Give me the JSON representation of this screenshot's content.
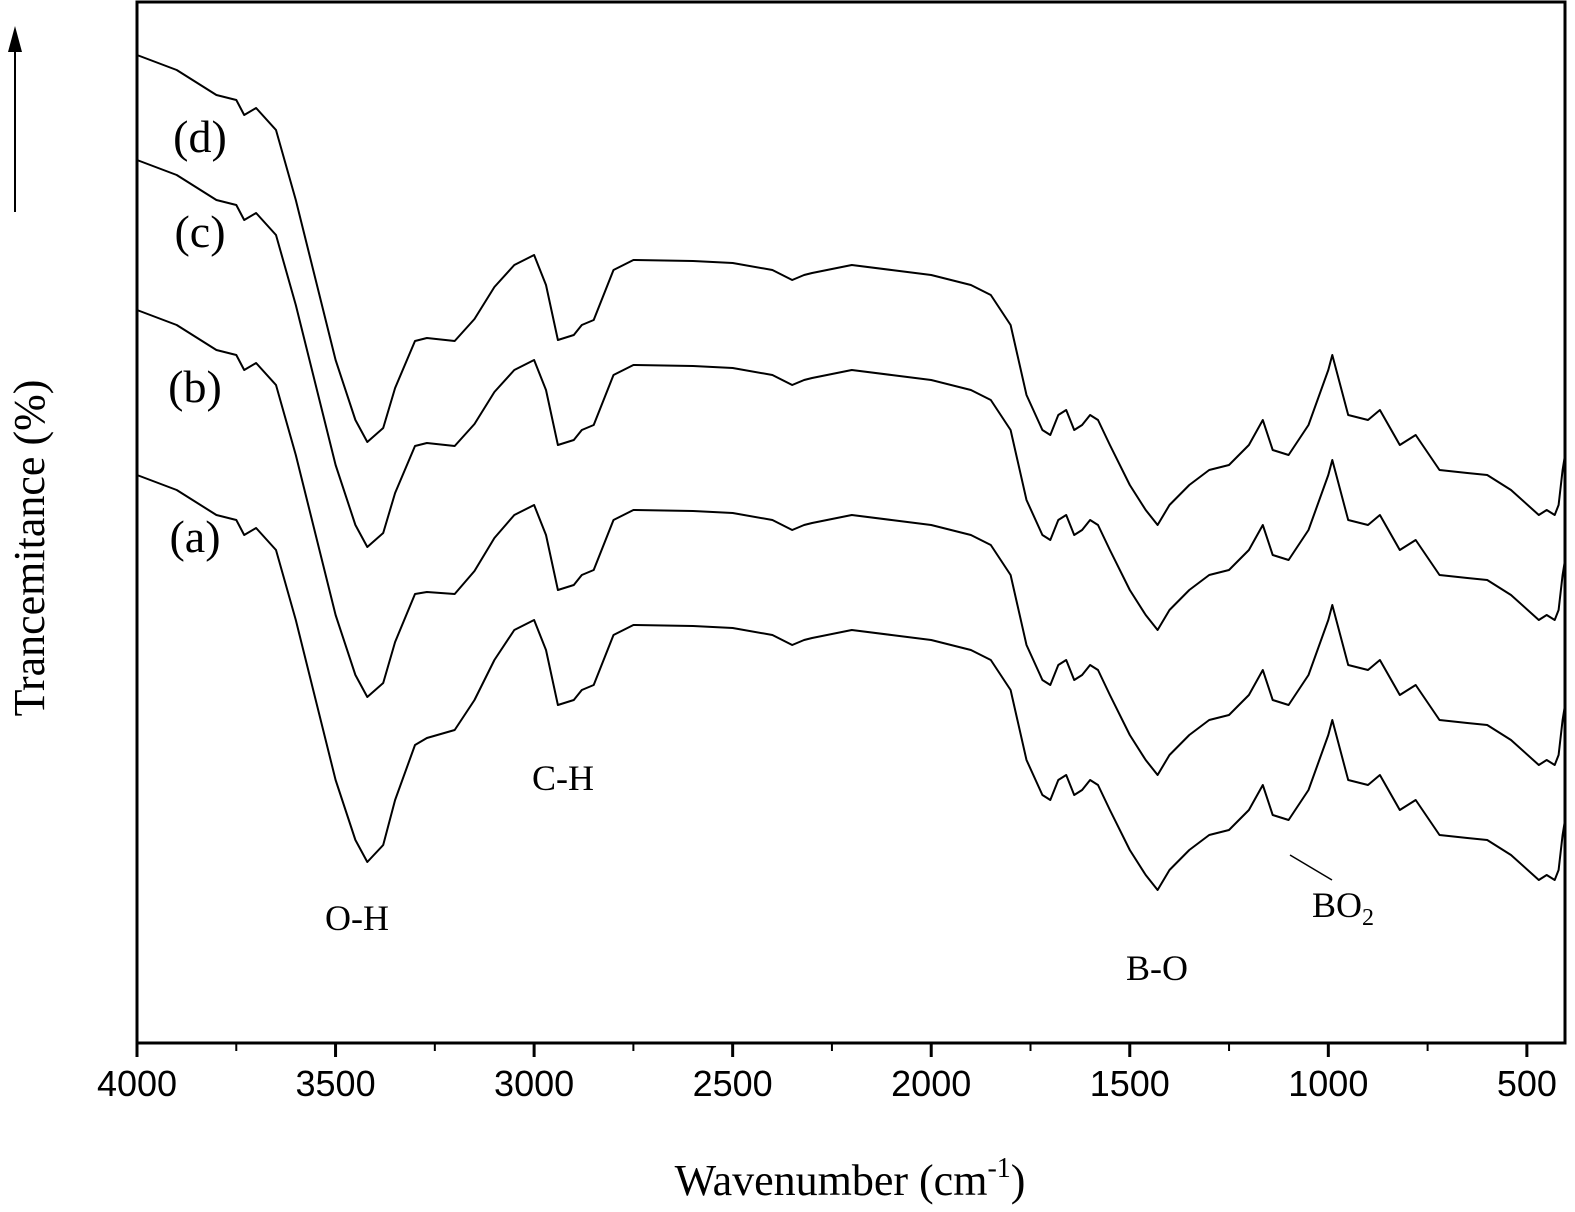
{
  "chart_data": {
    "type": "line",
    "xlabel": "Wavenumber (cm",
    "xlabel_sup": "-1",
    "xlabel_end": ")",
    "ylabel": "Trancemitance (%)",
    "xlim": [
      4000,
      404
    ],
    "ylim": [
      0,
      1043
    ],
    "xticks": [
      4000,
      3500,
      3000,
      2500,
      2000,
      1500,
      1000,
      500
    ],
    "xminorticks": [
      3750,
      3250,
      2750,
      2250,
      1750,
      1250,
      750
    ],
    "x": [
      4000,
      3900,
      3800,
      3750,
      3730,
      3700,
      3650,
      3600,
      3550,
      3500,
      3450,
      3420,
      3380,
      3350,
      3300,
      3270,
      3200,
      3150,
      3100,
      3050,
      3000,
      2970,
      2940,
      2900,
      2880,
      2850,
      2800,
      2750,
      2600,
      2500,
      2400,
      2350,
      2320,
      2300,
      2200,
      2100,
      2000,
      1900,
      1850,
      1800,
      1760,
      1720,
      1700,
      1680,
      1660,
      1640,
      1620,
      1600,
      1580,
      1550,
      1500,
      1460,
      1430,
      1400,
      1350,
      1300,
      1250,
      1200,
      1165,
      1140,
      1100,
      1050,
      1000,
      990,
      950,
      900,
      870,
      820,
      780,
      720,
      650,
      600,
      540,
      470,
      450,
      430,
      420,
      410,
      404
    ],
    "series": [
      {
        "name": "(a)",
        "color": "#000000",
        "values": [
          568,
          553,
          528,
          523,
          508,
          515,
          493,
          423,
          343,
          263,
          203,
          181,
          198,
          243,
          298,
          305,
          313,
          343,
          383,
          413,
          423,
          393,
          338,
          343,
          353,
          358,
          408,
          418,
          417,
          415,
          408,
          398,
          403,
          405,
          413,
          408,
          403,
          393,
          383,
          353,
          283,
          248,
          243,
          263,
          268,
          248,
          253,
          263,
          258,
          233,
          193,
          168,
          153,
          173,
          193,
          208,
          213,
          233,
          258,
          228,
          223,
          253,
          308,
          323,
          263,
          258,
          268,
          233,
          243,
          208,
          205,
          203,
          188,
          163,
          168,
          163,
          173,
          208,
          223
        ]
      },
      {
        "name": "(b)",
        "color": "#000000",
        "values": [
          733,
          718,
          693,
          688,
          673,
          680,
          658,
          588,
          508,
          428,
          368,
          346,
          360,
          401,
          449,
          451,
          449,
          472,
          505,
          528,
          538,
          508,
          453,
          458,
          468,
          473,
          523,
          533,
          532,
          530,
          523,
          513,
          518,
          520,
          528,
          523,
          518,
          508,
          498,
          468,
          398,
          363,
          358,
          378,
          383,
          363,
          368,
          378,
          373,
          348,
          308,
          283,
          268,
          288,
          308,
          323,
          328,
          348,
          373,
          343,
          338,
          368,
          423,
          438,
          378,
          373,
          383,
          348,
          358,
          323,
          320,
          318,
          303,
          278,
          283,
          278,
          288,
          323,
          338
        ]
      },
      {
        "name": "(c)",
        "color": "#000000",
        "values": [
          883,
          868,
          843,
          838,
          823,
          830,
          808,
          738,
          658,
          578,
          518,
          496,
          510,
          550,
          597,
          600,
          597,
          619,
          651,
          673,
          683,
          653,
          598,
          603,
          613,
          618,
          668,
          678,
          677,
          675,
          668,
          658,
          663,
          665,
          673,
          668,
          663,
          653,
          643,
          613,
          543,
          508,
          503,
          523,
          528,
          508,
          513,
          523,
          518,
          493,
          453,
          428,
          413,
          433,
          453,
          468,
          473,
          493,
          518,
          488,
          483,
          513,
          568,
          583,
          523,
          518,
          528,
          493,
          503,
          468,
          465,
          463,
          448,
          423,
          428,
          423,
          433,
          468,
          483
        ]
      },
      {
        "name": "(d)",
        "color": "#000000",
        "values": [
          988,
          973,
          948,
          943,
          928,
          935,
          913,
          843,
          763,
          683,
          623,
          601,
          615,
          655,
          702,
          705,
          702,
          724,
          756,
          778,
          788,
          758,
          703,
          708,
          718,
          723,
          773,
          783,
          782,
          780,
          773,
          763,
          768,
          770,
          778,
          773,
          768,
          758,
          748,
          718,
          648,
          613,
          608,
          628,
          633,
          613,
          618,
          628,
          623,
          598,
          558,
          533,
          518,
          538,
          558,
          573,
          578,
          598,
          623,
          593,
          588,
          618,
          673,
          688,
          628,
          623,
          633,
          598,
          608,
          573,
          570,
          568,
          553,
          528,
          533,
          528,
          538,
          573,
          588
        ]
      }
    ],
    "annotations": [
      {
        "text": "O-H"
      },
      {
        "text": "C-H"
      },
      {
        "text": "B-O"
      },
      {
        "text": "BO",
        "sub": "2"
      }
    ]
  }
}
